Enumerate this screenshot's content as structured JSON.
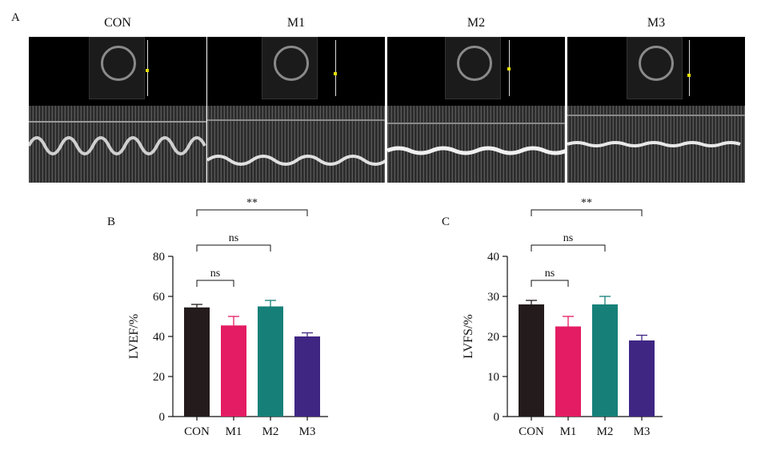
{
  "panel_a": {
    "letter": "A",
    "images": [
      {
        "label": "CON"
      },
      {
        "label": "M1"
      },
      {
        "label": "M2"
      },
      {
        "label": "M3"
      }
    ]
  },
  "chart_data": [
    {
      "panel": "B",
      "type": "bar",
      "categories": [
        "CON",
        "M1",
        "M2",
        "M3"
      ],
      "values": [
        54.5,
        45.5,
        55,
        40
      ],
      "errors": [
        1.5,
        4.5,
        3,
        1.8
      ],
      "colors": [
        "#241c1c",
        "#e31c63",
        "#168078",
        "#3f2683"
      ],
      "ylabel": "LVEF/%",
      "ylim": [
        0,
        80
      ],
      "yticks": [
        0,
        20,
        40,
        60,
        80
      ],
      "significance": [
        {
          "from": "CON",
          "to": "M1",
          "label": "ns"
        },
        {
          "from": "CON",
          "to": "M2",
          "label": "ns"
        },
        {
          "from": "CON",
          "to": "M3",
          "label": "**"
        }
      ]
    },
    {
      "panel": "C",
      "type": "bar",
      "categories": [
        "CON",
        "M1",
        "M2",
        "M3"
      ],
      "values": [
        28,
        22.5,
        28,
        19
      ],
      "errors": [
        1,
        2.5,
        2,
        1.3
      ],
      "colors": [
        "#241c1c",
        "#e31c63",
        "#168078",
        "#3f2683"
      ],
      "ylabel": "LVFS/%",
      "ylim": [
        0,
        40
      ],
      "yticks": [
        0,
        10,
        20,
        30,
        40
      ],
      "significance": [
        {
          "from": "CON",
          "to": "M1",
          "label": "ns"
        },
        {
          "from": "CON",
          "to": "M2",
          "label": "ns"
        },
        {
          "from": "CON",
          "to": "M3",
          "label": "**"
        }
      ]
    }
  ]
}
